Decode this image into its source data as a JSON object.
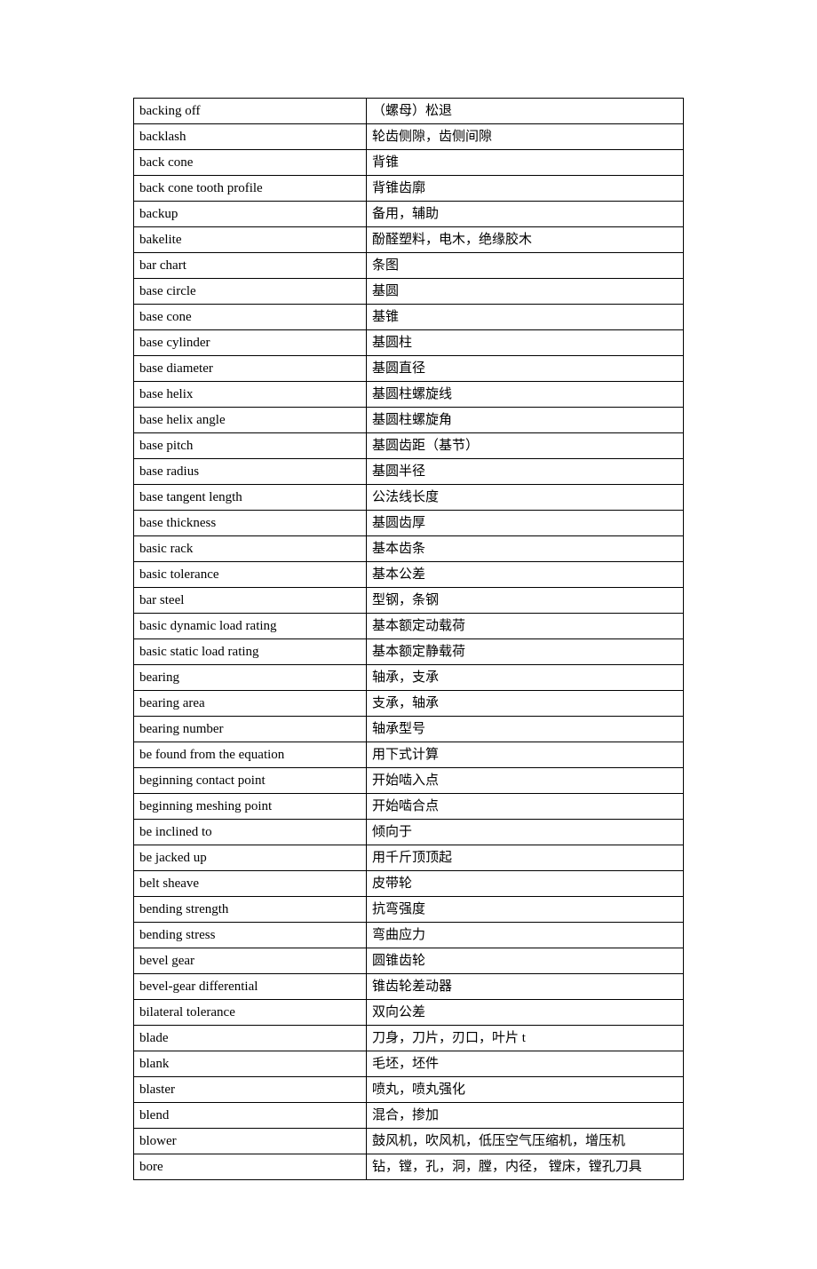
{
  "table": {
    "rows": [
      {
        "en": "backing off",
        "zh": "（螺母）松退"
      },
      {
        "en": "backlash",
        "zh": "轮齿侧隙，齿侧间隙"
      },
      {
        "en": "back cone",
        "zh": "背锥"
      },
      {
        "en": "back cone tooth profile",
        "zh": "背锥齿廓"
      },
      {
        "en": "backup",
        "zh": "备用，辅助"
      },
      {
        "en": "bakelite",
        "zh": "酚醛塑料，电木，绝缘胶木"
      },
      {
        "en": "bar chart",
        "zh": "条图"
      },
      {
        "en": "base circle",
        "zh": "基圆"
      },
      {
        "en": "base cone",
        "zh": "基锥"
      },
      {
        "en": "base cylinder",
        "zh": "基圆柱"
      },
      {
        "en": "base diameter",
        "zh": "基圆直径"
      },
      {
        "en": "base helix",
        "zh": "基圆柱螺旋线"
      },
      {
        "en": "base helix angle",
        "zh": "基圆柱螺旋角"
      },
      {
        "en": "base pitch",
        "zh": "基圆齿距（基节）"
      },
      {
        "en": "base radius",
        "zh": "基圆半径"
      },
      {
        "en": "base tangent length",
        "zh": "公法线长度"
      },
      {
        "en": "base thickness",
        "zh": "基圆齿厚"
      },
      {
        "en": "basic rack",
        "zh": "基本齿条"
      },
      {
        "en": "basic tolerance",
        "zh": "基本公差"
      },
      {
        "en": "bar steel",
        "zh": "型钢，条钢"
      },
      {
        "en": "basic dynamic load rating",
        "zh": "基本额定动载荷"
      },
      {
        "en": "basic static load rating",
        "zh": "基本额定静载荷"
      },
      {
        "en": "bearing",
        "zh": "轴承，支承"
      },
      {
        "en": "bearing area",
        "zh": "支承，轴承"
      },
      {
        "en": "bearing number",
        "zh": "轴承型号"
      },
      {
        "en": "be found from the equation",
        "zh": "用下式计算"
      },
      {
        "en": "beginning contact point",
        "zh": "开始啮入点"
      },
      {
        "en": "beginning meshing point",
        "zh": "开始啮合点"
      },
      {
        "en": "be inclined to",
        "zh": "倾向于"
      },
      {
        "en": "be jacked up",
        "zh": "用千斤顶顶起"
      },
      {
        "en": "belt sheave",
        "zh": "皮带轮"
      },
      {
        "en": "bending strength",
        "zh": "抗弯强度"
      },
      {
        "en": "bending stress",
        "zh": "弯曲应力"
      },
      {
        "en": "bevel gear",
        "zh": "圆锥齿轮"
      },
      {
        "en": "bevel-gear differential",
        "zh": "锥齿轮差动器"
      },
      {
        "en": "bilateral tolerance",
        "zh": "双向公差"
      },
      {
        "en": "blade",
        "zh": "刀身，刀片，刃口，叶片 t"
      },
      {
        "en": "blank",
        "zh": "毛坯，坯件"
      },
      {
        "en": "blaster",
        "zh": "喷丸，喷丸强化"
      },
      {
        "en": "blend",
        "zh": "混合，掺加"
      },
      {
        "en": "blower",
        "zh": "鼓风机，吹风机，低压空气压缩机，增压机"
      },
      {
        "en": "bore",
        "zh": "钻，镗，孔，洞，膛，内径，  镗床，镗孔刀具"
      }
    ]
  }
}
